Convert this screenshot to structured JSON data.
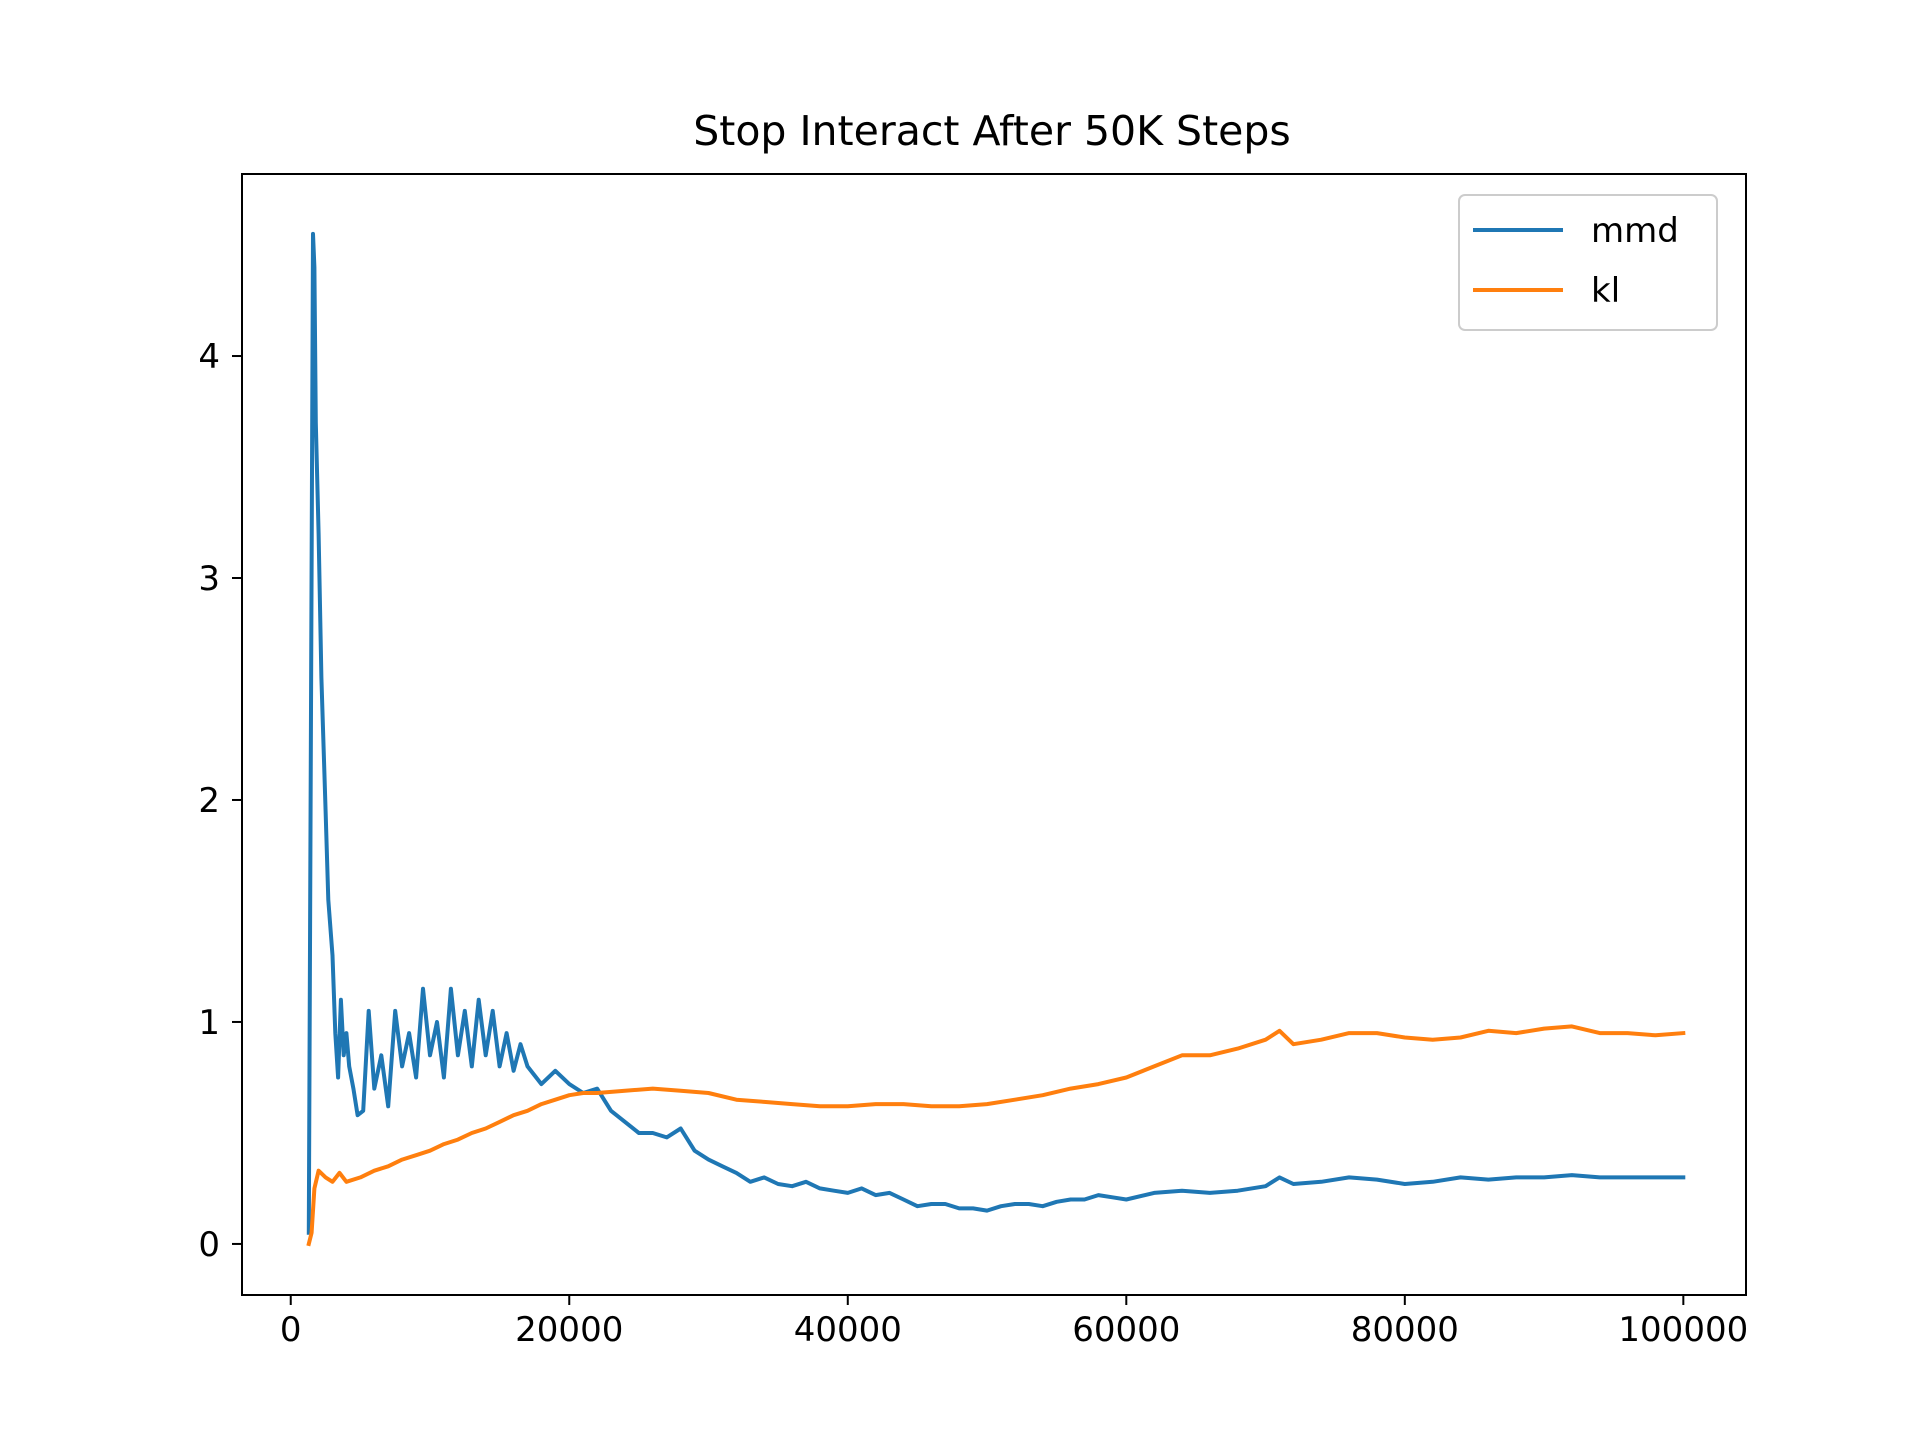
{
  "chart_data": {
    "type": "line",
    "title": "Stop Interact After 50K Steps",
    "xlabel": "",
    "ylabel": "",
    "xlim": [
      -3500,
      104500
    ],
    "ylim": [
      -0.23,
      4.82
    ],
    "xticks": [
      0,
      20000,
      40000,
      60000,
      80000,
      100000
    ],
    "xtick_labels": [
      "0",
      "20000",
      "40000",
      "60000",
      "80000",
      "100000"
    ],
    "yticks": [
      0,
      1,
      2,
      3,
      4
    ],
    "ytick_labels": [
      "0",
      "1",
      "2",
      "3",
      "4"
    ],
    "grid": false,
    "legend_position": "top-right",
    "series": [
      {
        "name": "mmd",
        "color": "#1f77b4",
        "x": [
          1300,
          1600,
          1700,
          1800,
          2000,
          2200,
          2500,
          2700,
          3000,
          3200,
          3400,
          3600,
          3800,
          4000,
          4200,
          4500,
          4800,
          5200,
          5600,
          6000,
          6500,
          7000,
          7500,
          8000,
          8500,
          9000,
          9500,
          10000,
          10500,
          11000,
          11500,
          12000,
          12500,
          13000,
          13500,
          14000,
          14500,
          15000,
          15500,
          16000,
          16500,
          17000,
          18000,
          19000,
          20000,
          21000,
          22000,
          23000,
          24000,
          25000,
          26000,
          27000,
          28000,
          29000,
          30000,
          31000,
          32000,
          33000,
          34000,
          35000,
          36000,
          37000,
          38000,
          39000,
          40000,
          41000,
          42000,
          43000,
          44000,
          45000,
          46000,
          47000,
          48000,
          49000,
          50000,
          51000,
          52000,
          53000,
          54000,
          55000,
          56000,
          57000,
          58000,
          59000,
          60000,
          62000,
          64000,
          66000,
          68000,
          70000,
          71000,
          72000,
          74000,
          76000,
          78000,
          80000,
          82000,
          84000,
          86000,
          88000,
          90000,
          92000,
          94000,
          96000,
          98000,
          100000
        ],
        "y": [
          0.05,
          4.55,
          4.4,
          3.7,
          3.2,
          2.55,
          1.95,
          1.55,
          1.3,
          0.95,
          0.75,
          1.1,
          0.85,
          0.95,
          0.8,
          0.7,
          0.58,
          0.6,
          1.05,
          0.7,
          0.85,
          0.62,
          1.05,
          0.8,
          0.95,
          0.75,
          1.15,
          0.85,
          1.0,
          0.75,
          1.15,
          0.85,
          1.05,
          0.8,
          1.1,
          0.85,
          1.05,
          0.8,
          0.95,
          0.78,
          0.9,
          0.8,
          0.72,
          0.78,
          0.72,
          0.68,
          0.7,
          0.6,
          0.55,
          0.5,
          0.5,
          0.48,
          0.52,
          0.42,
          0.38,
          0.35,
          0.32,
          0.28,
          0.3,
          0.27,
          0.26,
          0.28,
          0.25,
          0.24,
          0.23,
          0.25,
          0.22,
          0.23,
          0.2,
          0.17,
          0.18,
          0.18,
          0.16,
          0.16,
          0.15,
          0.17,
          0.18,
          0.18,
          0.17,
          0.19,
          0.2,
          0.2,
          0.22,
          0.21,
          0.2,
          0.23,
          0.24,
          0.23,
          0.24,
          0.26,
          0.3,
          0.27,
          0.28,
          0.3,
          0.29,
          0.27,
          0.28,
          0.3,
          0.29,
          0.3,
          0.3,
          0.31,
          0.3,
          0.3,
          0.3,
          0.3
        ]
      },
      {
        "name": "kl",
        "color": "#ff7f0e",
        "x": [
          1300,
          1500,
          1700,
          2000,
          2500,
          3000,
          3500,
          4000,
          5000,
          6000,
          7000,
          8000,
          9000,
          10000,
          11000,
          12000,
          13000,
          14000,
          15000,
          16000,
          17000,
          18000,
          19000,
          20000,
          21000,
          22000,
          24000,
          26000,
          28000,
          30000,
          32000,
          34000,
          36000,
          38000,
          40000,
          42000,
          44000,
          46000,
          48000,
          50000,
          52000,
          54000,
          56000,
          58000,
          60000,
          62000,
          64000,
          66000,
          68000,
          70000,
          71000,
          72000,
          74000,
          76000,
          78000,
          80000,
          82000,
          84000,
          86000,
          88000,
          90000,
          92000,
          94000,
          96000,
          98000,
          100000
        ],
        "y": [
          0.0,
          0.05,
          0.25,
          0.33,
          0.3,
          0.28,
          0.32,
          0.28,
          0.3,
          0.33,
          0.35,
          0.38,
          0.4,
          0.42,
          0.45,
          0.47,
          0.5,
          0.52,
          0.55,
          0.58,
          0.6,
          0.63,
          0.65,
          0.67,
          0.68,
          0.68,
          0.69,
          0.7,
          0.69,
          0.68,
          0.65,
          0.64,
          0.63,
          0.62,
          0.62,
          0.63,
          0.63,
          0.62,
          0.62,
          0.63,
          0.65,
          0.67,
          0.7,
          0.72,
          0.75,
          0.8,
          0.85,
          0.85,
          0.88,
          0.92,
          0.96,
          0.9,
          0.92,
          0.95,
          0.95,
          0.93,
          0.92,
          0.93,
          0.96,
          0.95,
          0.97,
          0.98,
          0.95,
          0.95,
          0.94,
          0.95
        ]
      }
    ]
  }
}
